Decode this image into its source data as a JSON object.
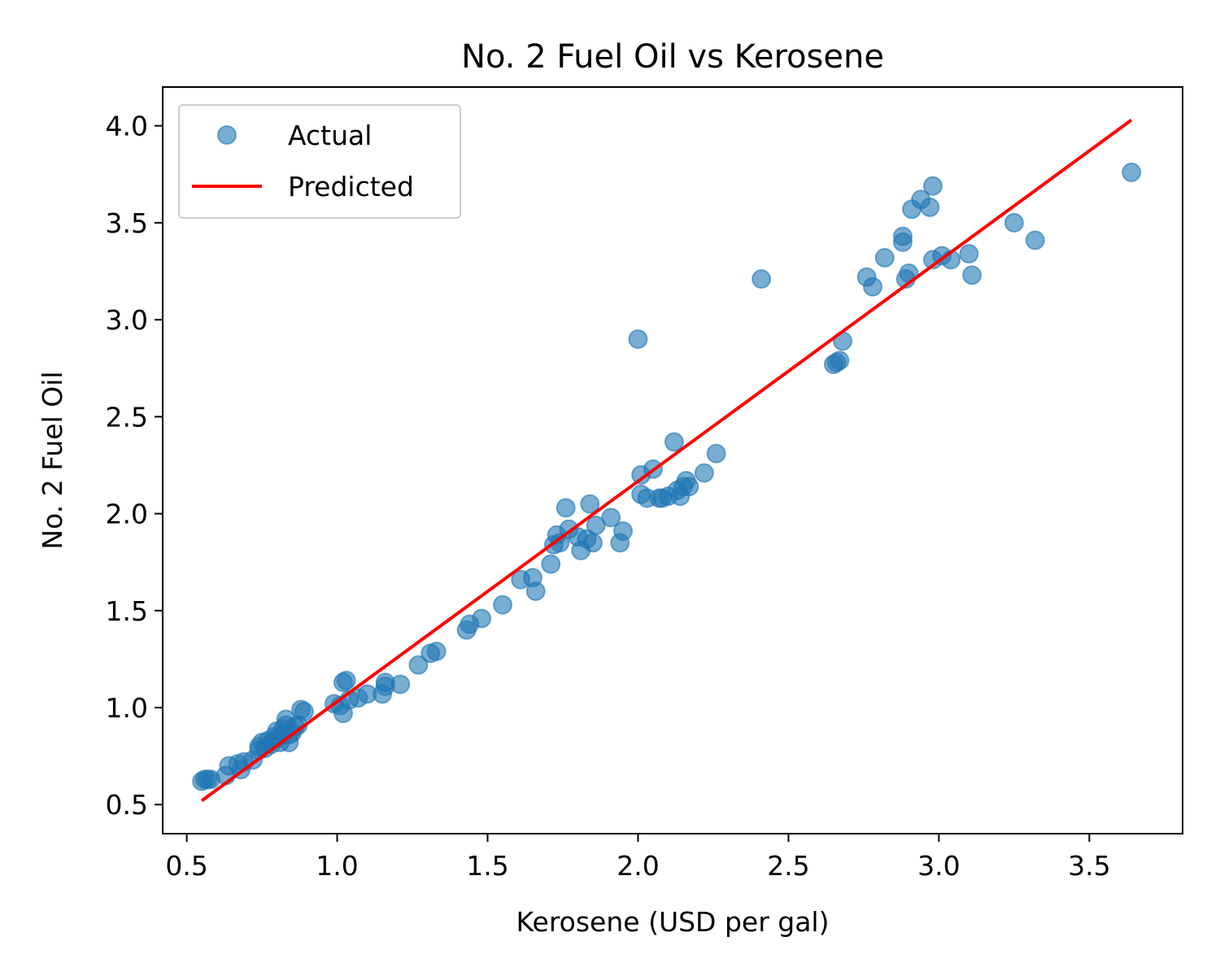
{
  "colors": {
    "actual": "#1f77b4",
    "predicted": "#ff0000",
    "axes": "#000000",
    "legend_border": "#cccccc"
  },
  "chart_data": {
    "type": "scatter",
    "title": "No. 2 Fuel Oil vs Kerosene",
    "xlabel": "Kerosene (USD per gal)",
    "ylabel": "No. 2 Fuel Oil",
    "xlim": [
      0.42,
      3.81
    ],
    "ylim": [
      0.35,
      4.2
    ],
    "xticks": [
      0.5,
      1.0,
      1.5,
      2.0,
      2.5,
      3.0,
      3.5
    ],
    "xtick_labels": [
      "0.5",
      "1.0",
      "1.5",
      "2.0",
      "2.5",
      "3.0",
      "3.5"
    ],
    "yticks": [
      0.5,
      1.0,
      1.5,
      2.0,
      2.5,
      3.0,
      3.5,
      4.0
    ],
    "ytick_labels": [
      "0.5",
      "1.0",
      "1.5",
      "2.0",
      "2.5",
      "3.0",
      "3.5",
      "4.0"
    ],
    "grid": false,
    "legend_position": "upper-left",
    "series": [
      {
        "name": "Actual",
        "kind": "scatter",
        "points": [
          [
            0.55,
            0.62
          ],
          [
            0.56,
            0.63
          ],
          [
            0.57,
            0.63
          ],
          [
            0.58,
            0.63
          ],
          [
            0.63,
            0.65
          ],
          [
            0.64,
            0.7
          ],
          [
            0.67,
            0.71
          ],
          [
            0.68,
            0.68
          ],
          [
            0.69,
            0.72
          ],
          [
            0.72,
            0.73
          ],
          [
            0.74,
            0.78
          ],
          [
            0.74,
            0.8
          ],
          [
            0.75,
            0.82
          ],
          [
            0.76,
            0.79
          ],
          [
            0.77,
            0.83
          ],
          [
            0.78,
            0.81
          ],
          [
            0.79,
            0.85
          ],
          [
            0.8,
            0.88
          ],
          [
            0.8,
            0.84
          ],
          [
            0.81,
            0.82
          ],
          [
            0.82,
            0.86
          ],
          [
            0.82,
            0.89
          ],
          [
            0.83,
            0.91
          ],
          [
            0.83,
            0.94
          ],
          [
            0.84,
            0.82
          ],
          [
            0.84,
            0.86
          ],
          [
            0.85,
            0.87
          ],
          [
            0.86,
            0.9
          ],
          [
            0.87,
            0.91
          ],
          [
            0.88,
            0.99
          ],
          [
            0.89,
            0.98
          ],
          [
            0.99,
            1.02
          ],
          [
            1.01,
            1.01
          ],
          [
            1.02,
            0.97
          ],
          [
            1.02,
            1.13
          ],
          [
            1.03,
            1.14
          ],
          [
            1.04,
            1.04
          ],
          [
            1.07,
            1.05
          ],
          [
            1.1,
            1.07
          ],
          [
            1.15,
            1.07
          ],
          [
            1.16,
            1.11
          ],
          [
            1.16,
            1.13
          ],
          [
            1.21,
            1.12
          ],
          [
            1.27,
            1.22
          ],
          [
            1.31,
            1.28
          ],
          [
            1.33,
            1.29
          ],
          [
            1.43,
            1.4
          ],
          [
            1.44,
            1.43
          ],
          [
            1.48,
            1.46
          ],
          [
            1.55,
            1.53
          ],
          [
            1.61,
            1.66
          ],
          [
            1.65,
            1.67
          ],
          [
            1.66,
            1.6
          ],
          [
            1.71,
            1.74
          ],
          [
            1.72,
            1.84
          ],
          [
            1.73,
            1.89
          ],
          [
            1.74,
            1.85
          ],
          [
            1.76,
            2.03
          ],
          [
            1.77,
            1.92
          ],
          [
            1.8,
            1.88
          ],
          [
            1.81,
            1.81
          ],
          [
            1.83,
            1.87
          ],
          [
            1.84,
            2.05
          ],
          [
            1.85,
            1.85
          ],
          [
            1.86,
            1.94
          ],
          [
            1.91,
            1.98
          ],
          [
            1.94,
            1.85
          ],
          [
            1.95,
            1.91
          ],
          [
            2.0,
            2.9
          ],
          [
            2.01,
            2.2
          ],
          [
            2.01,
            2.1
          ],
          [
            2.03,
            2.08
          ],
          [
            2.05,
            2.23
          ],
          [
            2.07,
            2.08
          ],
          [
            2.08,
            2.08
          ],
          [
            2.1,
            2.09
          ],
          [
            2.12,
            2.37
          ],
          [
            2.13,
            2.12
          ],
          [
            2.14,
            2.09
          ],
          [
            2.15,
            2.14
          ],
          [
            2.16,
            2.17
          ],
          [
            2.17,
            2.14
          ],
          [
            2.22,
            2.21
          ],
          [
            2.26,
            2.31
          ],
          [
            2.41,
            3.21
          ],
          [
            2.65,
            2.77
          ],
          [
            2.66,
            2.78
          ],
          [
            2.67,
            2.79
          ],
          [
            2.68,
            2.89
          ],
          [
            2.76,
            3.22
          ],
          [
            2.78,
            3.17
          ],
          [
            2.82,
            3.32
          ],
          [
            2.88,
            3.4
          ],
          [
            2.88,
            3.43
          ],
          [
            2.89,
            3.21
          ],
          [
            2.9,
            3.24
          ],
          [
            2.91,
            3.57
          ],
          [
            2.94,
            3.62
          ],
          [
            2.97,
            3.58
          ],
          [
            2.98,
            3.69
          ],
          [
            2.98,
            3.31
          ],
          [
            3.01,
            3.33
          ],
          [
            3.04,
            3.31
          ],
          [
            3.1,
            3.34
          ],
          [
            3.11,
            3.23
          ],
          [
            3.25,
            3.5
          ],
          [
            3.32,
            3.41
          ],
          [
            3.64,
            3.76
          ]
        ]
      },
      {
        "name": "Predicted",
        "kind": "line",
        "points": [
          [
            0.55,
            0.52
          ],
          [
            3.64,
            4.03
          ]
        ]
      }
    ]
  }
}
